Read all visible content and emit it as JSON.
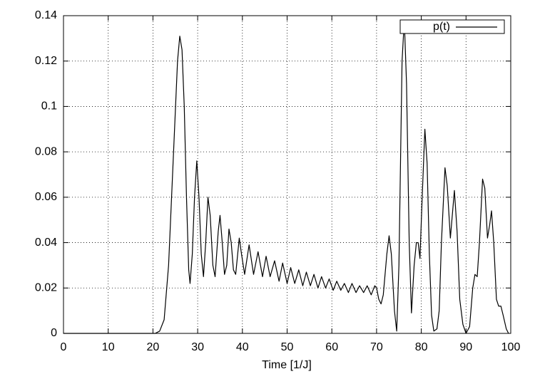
{
  "chart_data": {
    "type": "line",
    "xlabel": "Time [1/J]",
    "xlim": [
      0,
      100
    ],
    "ylim": [
      0,
      0.14
    ],
    "xticks": [
      0,
      10,
      20,
      30,
      40,
      50,
      60,
      70,
      80,
      90,
      100
    ],
    "yticks": [
      0,
      0.02,
      0.04,
      0.06,
      0.08,
      0.1,
      0.12,
      0.14
    ],
    "grid": true,
    "legend": "upper right",
    "series": [
      {
        "name": "p(t)",
        "color": "#000000",
        "x": [
          0,
          10,
          20,
          20.5,
          21.5,
          22.5,
          23.5,
          24.5,
          25.5,
          26,
          26.5,
          27,
          27.5,
          28,
          28.3,
          28.8,
          29.3,
          29.8,
          30.3,
          30.8,
          31.3,
          31.8,
          32.3,
          32.8,
          33.4,
          33.9,
          34.6,
          35,
          35.5,
          36,
          36.5,
          37,
          37.5,
          38,
          38.5,
          39.3,
          39.8,
          40.5,
          41.5,
          42.5,
          43.5,
          44.5,
          45.3,
          46.2,
          47.2,
          48.2,
          49,
          50,
          50.8,
          51.7,
          52.6,
          53.5,
          54.3,
          55.2,
          56,
          56.9,
          57.7,
          58.6,
          59.4,
          60.3,
          61.1,
          62,
          62.8,
          63.7,
          64.5,
          65.4,
          66.2,
          67.1,
          67.9,
          68.8,
          69.6,
          70,
          70.5,
          71,
          71.5,
          72.3,
          72.8,
          73.3,
          74,
          74.5,
          75,
          75.7,
          76.2,
          76.7,
          77.3,
          77.8,
          78.4,
          78.9,
          79.3,
          79.7,
          80.2,
          80.8,
          81.3,
          81.8,
          82.3,
          82.8,
          83.5,
          84,
          84.5,
          85.3,
          85.8,
          86.5,
          87.4,
          88,
          88.6,
          89.3,
          90,
          90.8,
          91.5,
          92,
          92.5,
          93,
          93.7,
          94.2,
          94.8,
          95.3,
          95.7,
          96.2,
          96.8,
          97.3,
          97.8,
          98.3,
          99,
          99.5
        ],
        "values": [
          0,
          0,
          0,
          0,
          0.001,
          0.006,
          0.03,
          0.075,
          0.12,
          0.131,
          0.125,
          0.1,
          0.06,
          0.028,
          0.022,
          0.035,
          0.06,
          0.076,
          0.06,
          0.035,
          0.025,
          0.04,
          0.06,
          0.052,
          0.03,
          0.025,
          0.045,
          0.052,
          0.04,
          0.026,
          0.03,
          0.046,
          0.04,
          0.028,
          0.026,
          0.042,
          0.035,
          0.026,
          0.039,
          0.026,
          0.036,
          0.025,
          0.034,
          0.025,
          0.032,
          0.023,
          0.031,
          0.022,
          0.029,
          0.022,
          0.028,
          0.021,
          0.027,
          0.021,
          0.026,
          0.02,
          0.025,
          0.02,
          0.024,
          0.019,
          0.023,
          0.019,
          0.022,
          0.018,
          0.022,
          0.018,
          0.021,
          0.018,
          0.021,
          0.017,
          0.021,
          0.02,
          0.015,
          0.013,
          0.017,
          0.035,
          0.043,
          0.035,
          0.01,
          0.001,
          0.03,
          0.12,
          0.138,
          0.11,
          0.04,
          0.009,
          0.03,
          0.04,
          0.04,
          0.033,
          0.06,
          0.09,
          0.075,
          0.035,
          0.008,
          0.001,
          0.002,
          0.01,
          0.04,
          0.073,
          0.065,
          0.042,
          0.063,
          0.045,
          0.015,
          0.004,
          0,
          0.003,
          0.02,
          0.026,
          0.025,
          0.04,
          0.068,
          0.064,
          0.042,
          0.048,
          0.054,
          0.04,
          0.015,
          0.012,
          0.012,
          0.008,
          0.002,
          0
        ]
      }
    ]
  }
}
